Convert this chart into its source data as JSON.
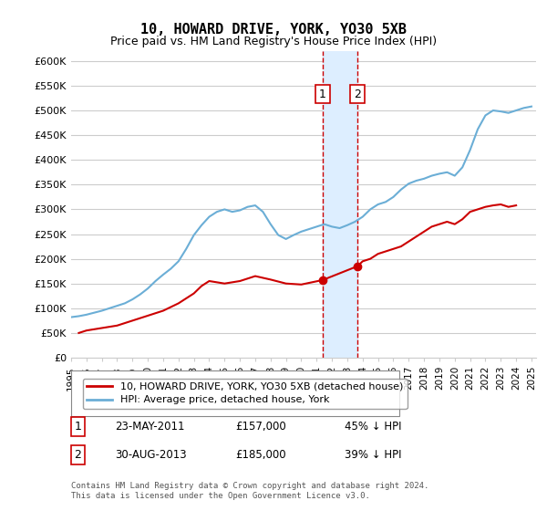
{
  "title": "10, HOWARD DRIVE, YORK, YO30 5XB",
  "subtitle": "Price paid vs. HM Land Registry's House Price Index (HPI)",
  "ylabel": "",
  "ylim": [
    0,
    620000
  ],
  "yticks": [
    0,
    50000,
    100000,
    150000,
    200000,
    250000,
    300000,
    350000,
    400000,
    450000,
    500000,
    550000,
    600000
  ],
  "ytick_labels": [
    "£0",
    "£50K",
    "£100K",
    "£150K",
    "£200K",
    "£250K",
    "£300K",
    "£350K",
    "£400K",
    "£450K",
    "£500K",
    "£550K",
    "£600K"
  ],
  "hpi_color": "#6baed6",
  "price_color": "#cc0000",
  "background_color": "#ffffff",
  "grid_color": "#cccccc",
  "sale1_date": 2011.39,
  "sale1_price": 157000,
  "sale1_label": "1",
  "sale2_date": 2013.66,
  "sale2_price": 185000,
  "sale2_label": "2",
  "highlight_color": "#ddeeff",
  "dashed_line_color": "#cc0000",
  "legend_label_red": "10, HOWARD DRIVE, YORK, YO30 5XB (detached house)",
  "legend_label_blue": "HPI: Average price, detached house, York",
  "table_rows": [
    {
      "num": "1",
      "date": "23-MAY-2011",
      "price": "£157,000",
      "pct": "45% ↓ HPI"
    },
    {
      "num": "2",
      "date": "30-AUG-2013",
      "price": "£185,000",
      "pct": "39% ↓ HPI"
    }
  ],
  "footer": "Contains HM Land Registry data © Crown copyright and database right 2024.\nThis data is licensed under the Open Government Licence v3.0.",
  "hpi_x": [
    1995,
    1995.5,
    1996,
    1996.5,
    1997,
    1997.5,
    1998,
    1998.5,
    1999,
    1999.5,
    2000,
    2000.5,
    2001,
    2001.5,
    2002,
    2002.5,
    2003,
    2003.5,
    2004,
    2004.5,
    2005,
    2005.5,
    2006,
    2006.5,
    2007,
    2007.5,
    2008,
    2008.5,
    2009,
    2009.5,
    2010,
    2010.5,
    2011,
    2011.5,
    2012,
    2012.5,
    2013,
    2013.5,
    2014,
    2014.5,
    2015,
    2015.5,
    2016,
    2016.5,
    2017,
    2017.5,
    2018,
    2018.5,
    2019,
    2019.5,
    2020,
    2020.5,
    2021,
    2021.5,
    2022,
    2022.5,
    2023,
    2023.5,
    2024,
    2024.5,
    2025
  ],
  "hpi_y": [
    82000,
    84000,
    87000,
    91000,
    95000,
    100000,
    105000,
    110000,
    118000,
    128000,
    140000,
    155000,
    168000,
    180000,
    195000,
    220000,
    248000,
    268000,
    285000,
    295000,
    300000,
    295000,
    298000,
    305000,
    308000,
    295000,
    270000,
    248000,
    240000,
    248000,
    255000,
    260000,
    265000,
    270000,
    265000,
    262000,
    268000,
    275000,
    285000,
    300000,
    310000,
    315000,
    325000,
    340000,
    352000,
    358000,
    362000,
    368000,
    372000,
    375000,
    368000,
    385000,
    420000,
    462000,
    490000,
    500000,
    498000,
    495000,
    500000,
    505000,
    508000
  ],
  "price_x": [
    1995.5,
    1996,
    1997,
    1998,
    1999,
    2000,
    2001,
    2002,
    2003,
    2003.5,
    2004,
    2005,
    2006,
    2007,
    2008,
    2009,
    2010,
    2011.39,
    2013.66,
    2014,
    2014.5,
    2015,
    2015.5,
    2016,
    2016.5,
    2017,
    2017.5,
    2018,
    2018.5,
    2019,
    2019.5,
    2020,
    2020.5,
    2021,
    2022,
    2022.5,
    2023,
    2023.5,
    2024
  ],
  "price_y": [
    50000,
    55000,
    60000,
    65000,
    75000,
    85000,
    95000,
    110000,
    130000,
    145000,
    155000,
    150000,
    155000,
    165000,
    158000,
    150000,
    148000,
    157000,
    185000,
    195000,
    200000,
    210000,
    215000,
    220000,
    225000,
    235000,
    245000,
    255000,
    265000,
    270000,
    275000,
    270000,
    280000,
    295000,
    305000,
    308000,
    310000,
    305000,
    308000
  ]
}
